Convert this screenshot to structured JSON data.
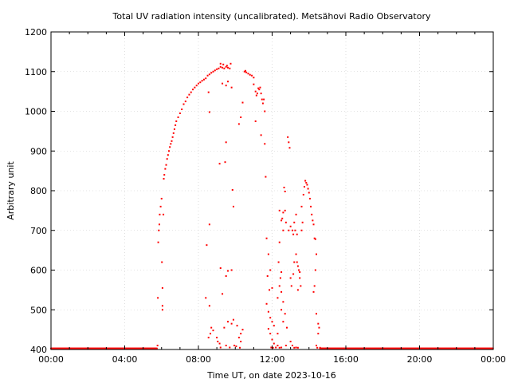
{
  "chart_data": {
    "type": "scatter",
    "title": "Total UV radiation intensity (uncalibrated). Metsähovi Radio Observatory",
    "xlabel": "Time UT, on date 2023-10-16",
    "ylabel": "Arbitrary unit",
    "x_unit": "hours UT",
    "xlim": [
      0,
      24
    ],
    "ylim": [
      400,
      1200
    ],
    "x_ticks": [
      {
        "value": 0,
        "label": "00:00"
      },
      {
        "value": 4,
        "label": "04:00"
      },
      {
        "value": 8,
        "label": "08:00"
      },
      {
        "value": 12,
        "label": "12:00"
      },
      {
        "value": 16,
        "label": "16:00"
      },
      {
        "value": 20,
        "label": "20:00"
      },
      {
        "value": 24,
        "label": "00:00"
      }
    ],
    "y_ticks": [
      {
        "value": 400,
        "label": "400"
      },
      {
        "value": 500,
        "label": "500"
      },
      {
        "value": 600,
        "label": "600"
      },
      {
        "value": 700,
        "label": "700"
      },
      {
        "value": 800,
        "label": "800"
      },
      {
        "value": 900,
        "label": "900"
      },
      {
        "value": 1000,
        "label": "1000"
      },
      {
        "value": 1100,
        "label": "1100"
      },
      {
        "value": 1200,
        "label": "1200"
      }
    ],
    "grid": true,
    "marker_color": "#ff0000",
    "baseline": {
      "value": 400,
      "x_ranges": [
        [
          0,
          5.75
        ],
        [
          14.6,
          24
        ]
      ]
    },
    "points": [
      [
        5.78,
        410
      ],
      [
        5.8,
        530
      ],
      [
        5.82,
        670
      ],
      [
        5.85,
        700
      ],
      [
        5.88,
        715
      ],
      [
        5.9,
        740
      ],
      [
        5.95,
        760
      ],
      [
        6.0,
        780
      ],
      [
        6.02,
        620
      ],
      [
        6.05,
        555
      ],
      [
        6.05,
        510
      ],
      [
        6.05,
        500
      ],
      [
        6.1,
        740
      ],
      [
        6.12,
        830
      ],
      [
        6.15,
        840
      ],
      [
        6.2,
        855
      ],
      [
        6.25,
        865
      ],
      [
        6.3,
        880
      ],
      [
        6.35,
        890
      ],
      [
        6.4,
        900
      ],
      [
        6.45,
        910
      ],
      [
        6.5,
        918
      ],
      [
        6.55,
        925
      ],
      [
        6.6,
        935
      ],
      [
        6.65,
        945
      ],
      [
        6.7,
        955
      ],
      [
        6.75,
        965
      ],
      [
        6.8,
        975
      ],
      [
        6.9,
        985
      ],
      [
        7.0,
        995
      ],
      [
        7.1,
        1005
      ],
      [
        7.2,
        1018
      ],
      [
        7.3,
        1025
      ],
      [
        7.4,
        1035
      ],
      [
        7.5,
        1042
      ],
      [
        7.6,
        1048
      ],
      [
        7.7,
        1055
      ],
      [
        7.8,
        1060
      ],
      [
        7.9,
        1065
      ],
      [
        8.0,
        1070
      ],
      [
        8.1,
        1073
      ],
      [
        8.2,
        1077
      ],
      [
        8.3,
        1080
      ],
      [
        8.4,
        1083
      ],
      [
        8.5,
        1090
      ],
      [
        8.6,
        1093
      ],
      [
        8.7,
        1097
      ],
      [
        8.8,
        1100
      ],
      [
        8.9,
        1103
      ],
      [
        9.0,
        1106
      ],
      [
        9.1,
        1108
      ],
      [
        9.2,
        1112
      ],
      [
        9.3,
        1110
      ],
      [
        9.4,
        1108
      ],
      [
        9.5,
        1112
      ],
      [
        9.6,
        1110
      ],
      [
        9.7,
        1108
      ],
      [
        9.2,
        1120
      ],
      [
        9.35,
        1118
      ],
      [
        9.55,
        1115
      ],
      [
        9.75,
        1120
      ],
      [
        9.5,
        1065
      ],
      [
        9.6,
        1075
      ],
      [
        9.8,
        1060
      ],
      [
        9.3,
        1070
      ],
      [
        8.55,
        1048
      ],
      [
        8.6,
        998
      ],
      [
        9.15,
        868
      ],
      [
        9.45,
        872
      ],
      [
        9.5,
        922
      ],
      [
        9.85,
        802
      ],
      [
        9.9,
        760
      ],
      [
        8.6,
        715
      ],
      [
        8.45,
        663
      ],
      [
        8.4,
        530
      ],
      [
        8.6,
        510
      ],
      [
        9.2,
        605
      ],
      [
        9.6,
        598
      ],
      [
        9.5,
        585
      ],
      [
        9.8,
        600
      ],
      [
        9.3,
        540
      ],
      [
        9.4,
        455
      ],
      [
        9.6,
        470
      ],
      [
        9.8,
        465
      ],
      [
        9.9,
        475
      ],
      [
        8.7,
        455
      ],
      [
        8.8,
        448
      ],
      [
        8.65,
        440
      ],
      [
        8.55,
        430
      ],
      [
        9.0,
        430
      ],
      [
        9.05,
        420
      ],
      [
        9.15,
        415
      ],
      [
        9.2,
        405
      ],
      [
        9.5,
        410
      ],
      [
        9.7,
        405
      ],
      [
        9.95,
        410
      ],
      [
        10.05,
        408
      ],
      [
        10.25,
        402
      ],
      [
        10.1,
        460
      ],
      [
        10.2,
        430
      ],
      [
        10.3,
        440
      ],
      [
        10.3,
        420
      ],
      [
        10.4,
        450
      ],
      [
        10.2,
        968
      ],
      [
        10.3,
        985
      ],
      [
        10.4,
        1022
      ],
      [
        10.5,
        1100
      ],
      [
        10.55,
        1102
      ],
      [
        10.6,
        1098
      ],
      [
        10.7,
        1095
      ],
      [
        10.8,
        1092
      ],
      [
        10.9,
        1090
      ],
      [
        11.0,
        1085
      ],
      [
        11.0,
        1068
      ],
      [
        11.1,
        1050
      ],
      [
        11.15,
        1040
      ],
      [
        11.2,
        1045
      ],
      [
        11.25,
        1058
      ],
      [
        11.3,
        1055
      ],
      [
        11.35,
        1060
      ],
      [
        11.4,
        1045
      ],
      [
        11.45,
        1030
      ],
      [
        11.5,
        1020
      ],
      [
        11.55,
        1030
      ],
      [
        11.6,
        1000
      ],
      [
        11.1,
        975
      ],
      [
        11.4,
        940
      ],
      [
        11.6,
        918
      ],
      [
        11.65,
        835
      ],
      [
        11.7,
        680
      ],
      [
        11.8,
        640
      ],
      [
        11.9,
        600
      ],
      [
        11.75,
        585
      ],
      [
        11.85,
        550
      ],
      [
        12.0,
        555
      ],
      [
        11.7,
        515
      ],
      [
        11.8,
        495
      ],
      [
        11.9,
        480
      ],
      [
        12.0,
        470
      ],
      [
        12.1,
        460
      ],
      [
        11.8,
        452
      ],
      [
        11.9,
        440
      ],
      [
        12.0,
        425
      ],
      [
        12.1,
        415
      ],
      [
        12.2,
        405
      ],
      [
        12.3,
        410
      ],
      [
        12.4,
        402
      ],
      [
        12.5,
        405
      ],
      [
        11.95,
        405
      ],
      [
        12.05,
        400
      ],
      [
        12.4,
        750
      ],
      [
        12.4,
        670
      ],
      [
        12.5,
        725
      ],
      [
        12.6,
        745
      ],
      [
        12.7,
        750
      ],
      [
        12.55,
        730
      ],
      [
        12.75,
        720
      ],
      [
        12.6,
        700
      ],
      [
        12.65,
        808
      ],
      [
        12.7,
        798
      ],
      [
        12.35,
        620
      ],
      [
        12.5,
        595
      ],
      [
        12.45,
        580
      ],
      [
        12.4,
        560
      ],
      [
        12.5,
        545
      ],
      [
        12.3,
        530
      ],
      [
        12.6,
        520
      ],
      [
        12.5,
        500
      ],
      [
        12.7,
        490
      ],
      [
        12.6,
        470
      ],
      [
        12.8,
        455
      ],
      [
        12.75,
        410
      ],
      [
        12.3,
        440
      ],
      [
        12.85,
        935
      ],
      [
        12.9,
        922
      ],
      [
        12.95,
        908
      ],
      [
        12.9,
        700
      ],
      [
        13.0,
        710
      ],
      [
        13.1,
        700
      ],
      [
        13.15,
        690
      ],
      [
        13.2,
        720
      ],
      [
        13.3,
        740
      ],
      [
        13.25,
        700
      ],
      [
        13.35,
        690
      ],
      [
        13.0,
        580
      ],
      [
        13.05,
        560
      ],
      [
        13.15,
        590
      ],
      [
        13.2,
        620
      ],
      [
        13.3,
        640
      ],
      [
        13.35,
        620
      ],
      [
        13.4,
        610
      ],
      [
        13.45,
        600
      ],
      [
        13.5,
        595
      ],
      [
        13.5,
        580
      ],
      [
        13.55,
        560
      ],
      [
        13.4,
        550
      ],
      [
        13.0,
        420
      ],
      [
        13.1,
        410
      ],
      [
        13.2,
        400
      ],
      [
        13.3,
        405
      ],
      [
        13.4,
        402
      ],
      [
        13.6,
        700
      ],
      [
        13.65,
        720
      ],
      [
        13.6,
        760
      ],
      [
        13.7,
        790
      ],
      [
        13.75,
        810
      ],
      [
        13.8,
        825
      ],
      [
        13.85,
        820
      ],
      [
        13.9,
        815
      ],
      [
        13.95,
        805
      ],
      [
        14.0,
        795
      ],
      [
        14.05,
        780
      ],
      [
        14.1,
        760
      ],
      [
        14.15,
        740
      ],
      [
        14.2,
        725
      ],
      [
        14.25,
        715
      ],
      [
        14.3,
        680
      ],
      [
        14.35,
        678
      ],
      [
        14.4,
        640
      ],
      [
        14.35,
        600
      ],
      [
        14.3,
        560
      ],
      [
        14.25,
        545
      ],
      [
        14.4,
        490
      ],
      [
        14.5,
        465
      ],
      [
        14.55,
        455
      ],
      [
        14.5,
        440
      ],
      [
        14.4,
        410
      ],
      [
        14.45,
        402
      ],
      [
        14.6,
        402
      ]
    ]
  }
}
